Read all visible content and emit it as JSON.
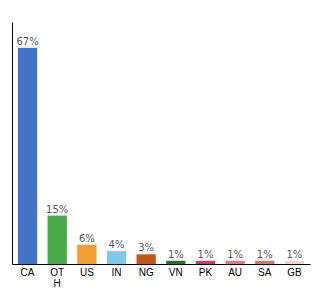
{
  "chart_data": {
    "type": "bar",
    "categories": [
      "CA",
      "OT\nH",
      "US",
      "IN",
      "NG",
      "VN",
      "PK",
      "AU",
      "SA",
      "GB"
    ],
    "values": [
      67,
      15,
      6,
      4,
      3,
      1,
      1,
      1,
      1,
      1
    ],
    "value_labels": [
      "67%",
      "15%",
      "6%",
      "4%",
      "3%",
      "1%",
      "1%",
      "1%",
      "1%",
      "1%"
    ],
    "colors": [
      "#4472c4",
      "#4aaa4a",
      "#f0a030",
      "#7ec8e8",
      "#c05818",
      "#1a7a20",
      "#e0306a",
      "#e87878",
      "#e07070",
      "#f5d5c0"
    ],
    "ylim": [
      0,
      75
    ],
    "data_labels": true,
    "tick_labels": "x",
    "grid": false
  }
}
